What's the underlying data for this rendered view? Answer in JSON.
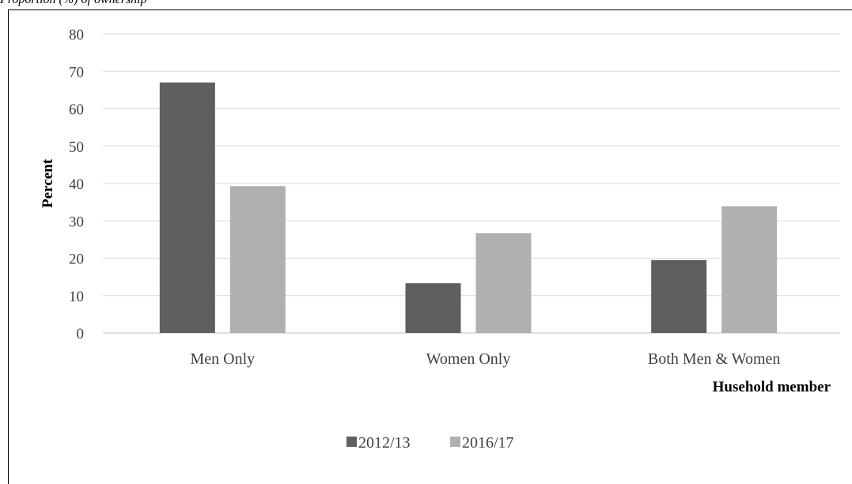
{
  "caption": "Proportion (%) of ownership",
  "chart_data": {
    "type": "bar",
    "title": "",
    "categories": [
      "Men Only",
      "Women Only",
      "Both Men & Women"
    ],
    "series": [
      {
        "name": "2012/13",
        "values": [
          67,
          13.3,
          19.5
        ],
        "color": "#5f5f5f"
      },
      {
        "name": "2016/17",
        "values": [
          39.3,
          26.7,
          33.9
        ],
        "color": "#b0b0b0"
      }
    ],
    "xlabel": "Husehold member",
    "ylabel": "Percent",
    "ylim": [
      0,
      80
    ],
    "yticks": [
      0,
      10,
      20,
      30,
      40,
      50,
      60,
      70,
      80
    ],
    "grid": true,
    "legend_position": "bottom"
  }
}
